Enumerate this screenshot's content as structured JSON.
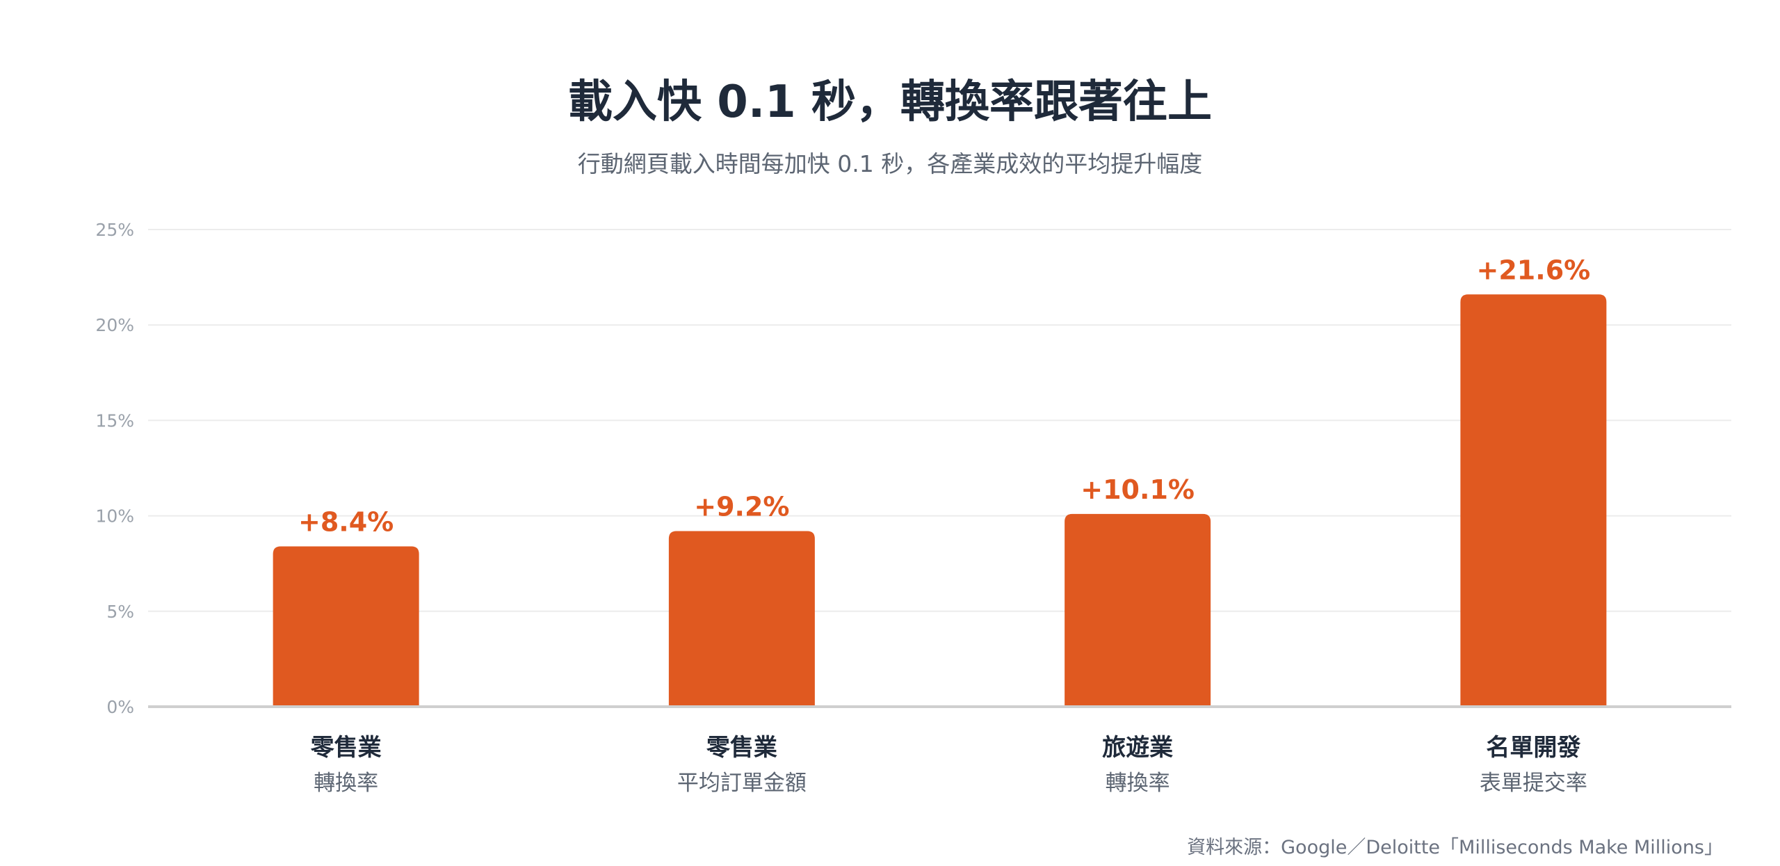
{
  "chart_data": {
    "type": "bar",
    "title": "載入快 0.1 秒，轉換率跟著往上",
    "subtitle": "行動網頁載入時間每加快 0.1 秒，各產業成效的平均提升幅度",
    "categories": [
      "零售業",
      "零售業",
      "旅遊業",
      "名單開發"
    ],
    "sublabels": [
      "轉換率",
      "平均訂單金額",
      "轉換率",
      "表單提交率"
    ],
    "values": [
      8.4,
      9.2,
      10.1,
      21.6
    ],
    "value_labels": [
      "+8.4%",
      "+9.2%",
      "+10.1%",
      "+21.6%"
    ],
    "ylim": [
      0,
      25
    ],
    "yticks": [
      0,
      5,
      10,
      15,
      20,
      25
    ],
    "ytick_labels": [
      "0%",
      "5%",
      "10%",
      "15%",
      "20%",
      "25%"
    ],
    "xlabel": "",
    "ylabel": "",
    "grid": true,
    "legend": "none",
    "bar_color": "#e05920",
    "value_label_color": "#e05920",
    "source": "資料來源：Google／Deloitte「Milliseconds Make Millions」"
  }
}
